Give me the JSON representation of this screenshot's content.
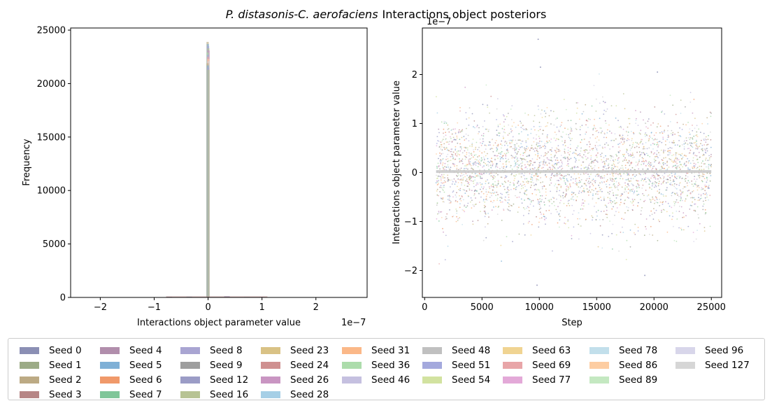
{
  "figure": {
    "title_italic": "P. distasonis-C. aerofaciens",
    "title_rest": "Interactions object posteriors"
  },
  "chart_data": [
    {
      "type": "bar",
      "subtype": "histogram",
      "xlabel": "Interactions object parameter value",
      "ylabel": "Frequency",
      "x_offset_label": "1e−7",
      "xlim": [
        -2.55,
        2.95
      ],
      "ylim": [
        0,
        25200
      ],
      "xticks": [
        -2,
        -1,
        0,
        1,
        2
      ],
      "yticks": [
        0,
        5000,
        10000,
        15000,
        20000,
        25000
      ],
      "bins_center_peak": {
        "x": 0,
        "max_frequency": 23900
      },
      "side_bars": [
        {
          "x": -0.72,
          "frequency": 60
        },
        {
          "x": -0.35,
          "frequency": 80
        },
        {
          "x": 0.35,
          "frequency": 120
        },
        {
          "x": 0.72,
          "frequency": 60
        },
        {
          "x": 1.0,
          "frequency": 40
        }
      ],
      "series_peaks": [
        23900,
        23700,
        23500,
        23300,
        23100,
        22900,
        22700,
        22500,
        22300,
        22100,
        21900,
        21700,
        21500,
        21300
      ]
    },
    {
      "type": "scatter",
      "subtype": "trace",
      "xlabel": "Step",
      "ylabel": "Interactions object parameter value",
      "y_offset_label": "1e−7",
      "xlim": [
        -200,
        25900
      ],
      "ylim": [
        -2.55,
        2.95
      ],
      "xticks": [
        0,
        5000,
        10000,
        15000,
        20000,
        25000
      ],
      "yticks": [
        -2,
        -1,
        0,
        1,
        2
      ],
      "step_range": [
        1000,
        25000
      ],
      "value_spread_sd": 0.55,
      "value_min": -2.3,
      "value_max": 2.72,
      "notable_points": [
        {
          "x": 9900,
          "y": 2.72
        },
        {
          "x": 10100,
          "y": 2.15
        },
        {
          "x": 20300,
          "y": 2.05
        },
        {
          "x": 9800,
          "y": -2.3
        },
        {
          "x": 19200,
          "y": -2.1
        }
      ]
    }
  ],
  "legend": {
    "items": [
      {
        "label": "Seed 0",
        "color": "#8b8fb4"
      },
      {
        "label": "Seed 1",
        "color": "#9cab86"
      },
      {
        "label": "Seed 2",
        "color": "#bcaa84"
      },
      {
        "label": "Seed 3",
        "color": "#b68585"
      },
      {
        "label": "Seed 4",
        "color": "#b18eac"
      },
      {
        "label": "Seed 5",
        "color": "#7fb0d6"
      },
      {
        "label": "Seed 6",
        "color": "#f0996a"
      },
      {
        "label": "Seed 7",
        "color": "#80c699"
      },
      {
        "label": "Seed 8",
        "color": "#a9a5d2"
      },
      {
        "label": "Seed 9",
        "color": "#9e9e9e"
      },
      {
        "label": "Seed 12",
        "color": "#9b9cc6"
      },
      {
        "label": "Seed 16",
        "color": "#b7c394"
      },
      {
        "label": "Seed 23",
        "color": "#d9c285"
      },
      {
        "label": "Seed 24",
        "color": "#cf9090"
      },
      {
        "label": "Seed 26",
        "color": "#c995c2"
      },
      {
        "label": "Seed 28",
        "color": "#a6cfe6"
      },
      {
        "label": "Seed 31",
        "color": "#fbb888"
      },
      {
        "label": "Seed 36",
        "color": "#acdcab"
      },
      {
        "label": "Seed 46",
        "color": "#c5c0e0"
      },
      {
        "label": "Seed 48",
        "color": "#c0c0c0"
      },
      {
        "label": "Seed 51",
        "color": "#a4a9dd"
      },
      {
        "label": "Seed 54",
        "color": "#d2e2a0"
      },
      {
        "label": "Seed 63",
        "color": "#f0d492"
      },
      {
        "label": "Seed 69",
        "color": "#e8a5a8"
      },
      {
        "label": "Seed 77",
        "color": "#e3a9d8"
      },
      {
        "label": "Seed 78",
        "color": "#c2dfeb"
      },
      {
        "label": "Seed 86",
        "color": "#fdcda2"
      },
      {
        "label": "Seed 89",
        "color": "#c4e8c1"
      },
      {
        "label": "Seed 96",
        "color": "#d8d6ea"
      },
      {
        "label": "Seed 127",
        "color": "#d6d6d6"
      }
    ]
  }
}
